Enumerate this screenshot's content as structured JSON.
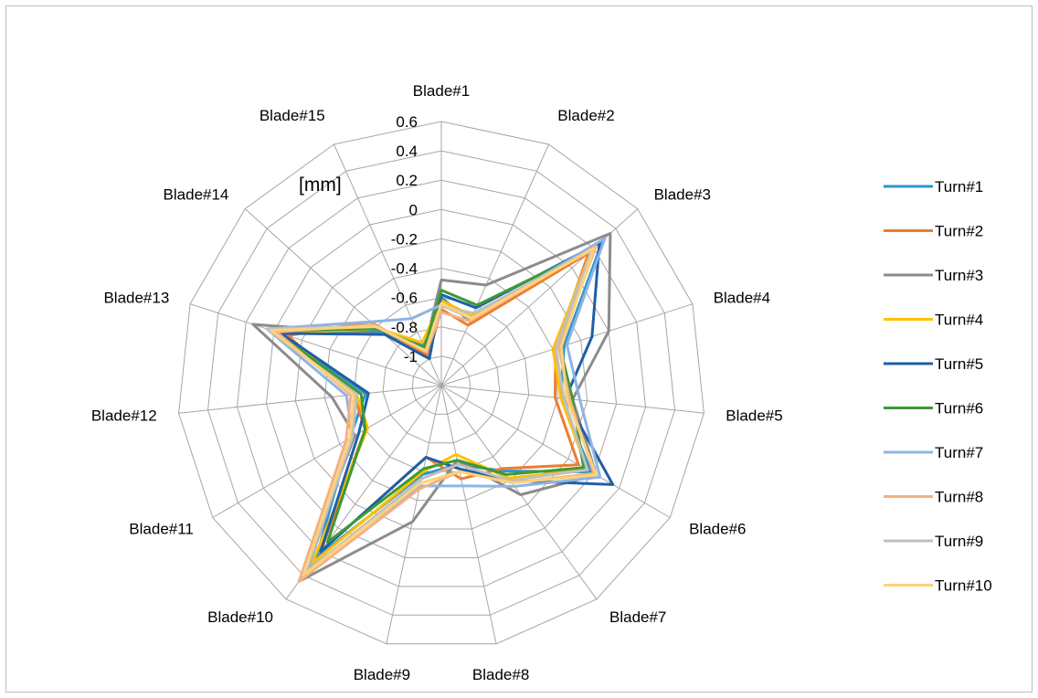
{
  "chart_data": {
    "type": "radar",
    "unit_label": "[mm]",
    "axis": {
      "min": -1.2,
      "max": 0.6,
      "ticks": [
        0.6,
        0.4,
        0.2,
        0,
        -0.2,
        -0.4,
        -0.6,
        -0.8,
        -1
      ]
    },
    "tick_labels": [
      "0.6",
      "0.4",
      "0.2",
      "0",
      "-0.2",
      "-0.4",
      "-0.6",
      "-0.8",
      "-1"
    ],
    "grid": true,
    "legend_position": "right",
    "categories": [
      "Blade#1",
      "Blade#2",
      "Blade#3",
      "Blade#4",
      "Blade#5",
      "Blade#6",
      "Blade#7",
      "Blade#8",
      "Blade#9",
      "Blade#10",
      "Blade#11",
      "Blade#12",
      "Blade#13",
      "Blade#14",
      "Blade#15"
    ],
    "series": [
      {
        "name": "Turn#1",
        "color": "#2E95C9",
        "values": [
          -0.6,
          -0.72,
          0.28,
          -0.32,
          -0.38,
          -0.02,
          -0.48,
          -0.65,
          -0.58,
          0.25,
          -0.48,
          -0.68,
          -0.05,
          -0.65,
          -0.9
        ]
      },
      {
        "name": "Turn#2",
        "color": "#ED7D31",
        "values": [
          -0.68,
          -0.75,
          0.15,
          -0.38,
          -0.42,
          -0.12,
          -0.5,
          -0.55,
          -0.7,
          0.2,
          -0.6,
          -0.6,
          -0.1,
          -0.55,
          -0.98
        ]
      },
      {
        "name": "Turn#3",
        "color": "#8C8C8C",
        "values": [
          -0.48,
          -0.45,
          0.35,
          0.0,
          -0.3,
          0.02,
          -0.28,
          -0.68,
          -0.25,
          0.45,
          -0.52,
          -0.45,
          0.15,
          -0.68,
          -0.92
        ]
      },
      {
        "name": "Turn#4",
        "color": "#FFC000",
        "values": [
          -0.62,
          -0.68,
          0.18,
          -0.4,
          -0.38,
          -0.05,
          -0.42,
          -0.72,
          -0.6,
          0.3,
          -0.62,
          -0.62,
          -0.05,
          -0.62,
          -0.88
        ]
      },
      {
        "name": "Turn#5",
        "color": "#1F5FA6",
        "values": [
          -0.58,
          -0.62,
          0.25,
          -0.12,
          -0.35,
          0.15,
          -0.4,
          -0.62,
          -0.7,
          0.2,
          -0.55,
          -0.7,
          -0.05,
          -0.68,
          -1.0
        ]
      },
      {
        "name": "Turn#6",
        "color": "#3C9A35",
        "values": [
          -0.55,
          -0.6,
          0.2,
          -0.35,
          -0.3,
          -0.08,
          -0.45,
          -0.68,
          -0.62,
          0.12,
          -0.6,
          -0.65,
          0.0,
          -0.62,
          -0.92
        ]
      },
      {
        "name": "Turn#7",
        "color": "#8DB4E2",
        "values": [
          -0.65,
          -0.7,
          0.3,
          -0.3,
          -0.25,
          0.05,
          -0.35,
          -0.5,
          -0.5,
          0.35,
          -0.5,
          -0.55,
          0.05,
          -0.55,
          -0.7
        ]
      },
      {
        "name": "Turn#8",
        "color": "#F4B183",
        "values": [
          -0.7,
          -0.72,
          0.22,
          -0.36,
          -0.32,
          0.0,
          -0.38,
          -0.6,
          -0.48,
          0.45,
          -0.45,
          -0.58,
          -0.02,
          -0.58,
          -0.95
        ]
      },
      {
        "name": "Turn#9",
        "color": "#BFBFBF",
        "values": [
          -0.66,
          -0.66,
          0.18,
          -0.38,
          -0.36,
          -0.05,
          -0.4,
          -0.65,
          -0.55,
          0.38,
          -0.5,
          -0.62,
          0.05,
          -0.6,
          -0.94
        ]
      },
      {
        "name": "Turn#10",
        "color": "#FFD27A",
        "values": [
          -0.64,
          -0.7,
          0.2,
          -0.34,
          -0.34,
          0.02,
          -0.38,
          -0.6,
          -0.52,
          0.4,
          -0.48,
          -0.6,
          0.02,
          -0.6,
          -0.94
        ]
      }
    ]
  }
}
